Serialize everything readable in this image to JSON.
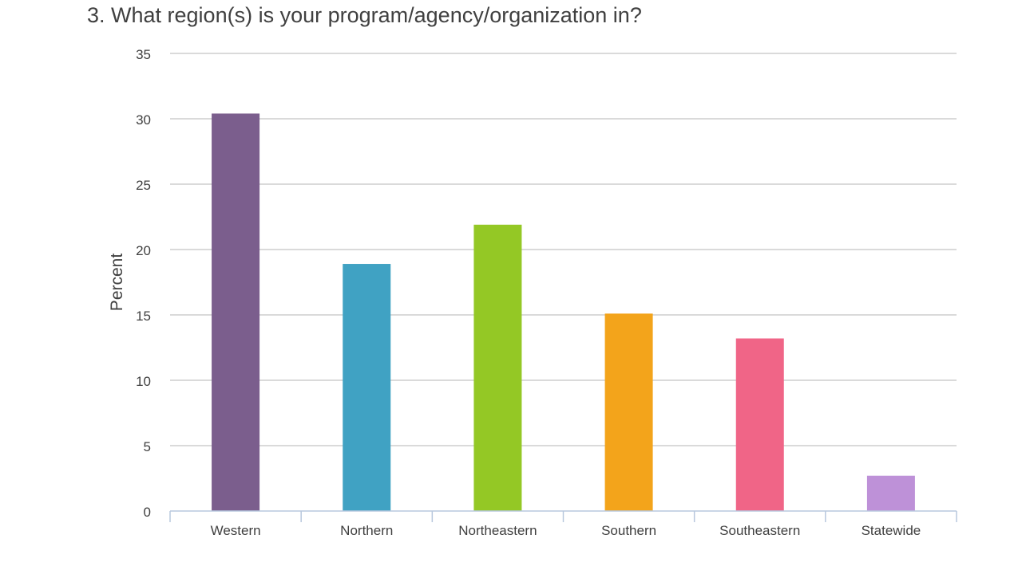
{
  "chart_data": {
    "type": "bar",
    "title": "3. What region(s) is your program/agency/organization in?",
    "xlabel": "",
    "ylabel": "Percent",
    "categories": [
      "Western",
      "Northern",
      "Northeastern",
      "Southern",
      "Southeastern",
      "Statewide"
    ],
    "values": [
      30.4,
      18.9,
      21.9,
      15.1,
      13.2,
      2.7
    ],
    "colors": [
      "#7b5e8d",
      "#40a2c3",
      "#94c825",
      "#f3a41b",
      "#f06587",
      "#be91d8"
    ],
    "ylim": [
      0,
      35
    ],
    "yticks": [
      0,
      5,
      10,
      15,
      20,
      25,
      30,
      35
    ],
    "grid": true,
    "legend": "none"
  }
}
